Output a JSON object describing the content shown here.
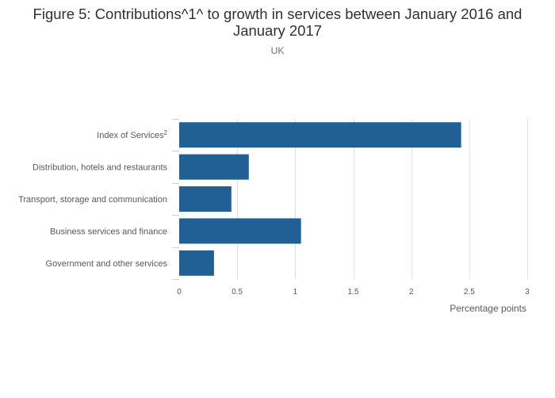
{
  "title": "Figure 5: Contributions^1^ to growth in services between January 2016 and January 2017",
  "subtitle": "UK",
  "chart_data": {
    "type": "bar",
    "orientation": "horizontal",
    "title": "Figure 5: Contributions^1^ to growth in services between January 2016 and January 2017",
    "subtitle": "UK",
    "categories": [
      {
        "label": "Index of Services",
        "superscript": "2"
      },
      {
        "label": "Distribution, hotels and restaurants",
        "superscript": ""
      },
      {
        "label": "Transport, storage and communication",
        "superscript": ""
      },
      {
        "label": "Business services and finance",
        "superscript": ""
      },
      {
        "label": "Government and other services",
        "superscript": ""
      }
    ],
    "values": [
      2.43,
      0.6,
      0.45,
      1.05,
      0.3
    ],
    "xlabel": "Percentage points",
    "ylabel": "",
    "xlim": [
      0,
      3
    ],
    "xticks": [
      0,
      0.5,
      1,
      1.5,
      2,
      2.5,
      3
    ],
    "xtick_labels": [
      "0",
      "0.5",
      "1",
      "1.5",
      "2",
      "2.5",
      "3"
    ],
    "grid": true,
    "bar_color": "#206095"
  }
}
